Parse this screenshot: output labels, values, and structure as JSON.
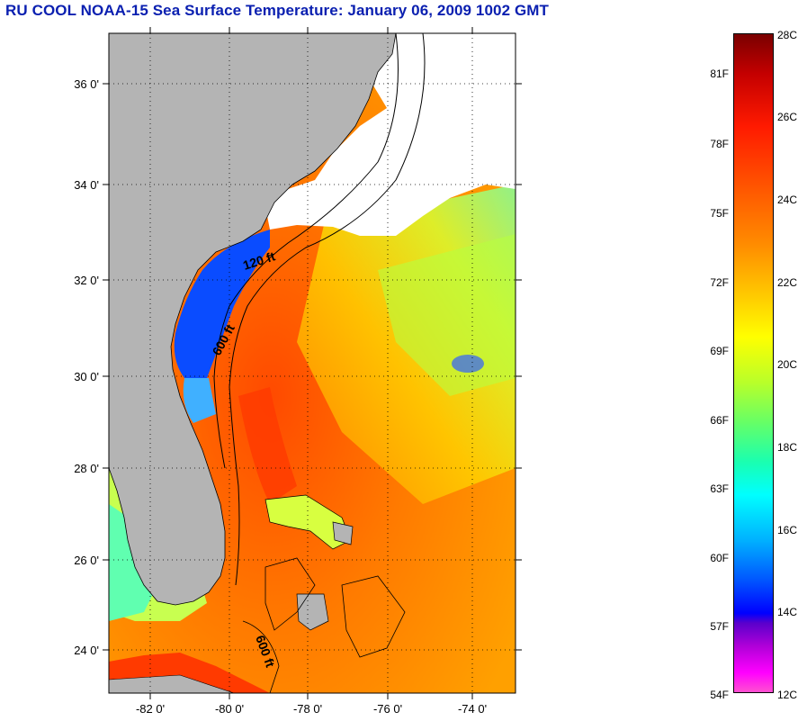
{
  "title": "RU COOL  NOAA-15  Sea Surface Temperature:  January 06, 2009 1002 GMT",
  "map": {
    "latitude_labels": [
      "36 0'",
      "34 0'",
      "32 0'",
      "30 0'",
      "28 0'",
      "26 0'",
      "24 0'"
    ],
    "longitude_labels": [
      "-82 0'",
      "-80 0'",
      "-78 0'",
      "-76 0'",
      "-74 0'"
    ],
    "contour_labels": [
      "120 ft",
      "600 ft",
      "600 ft"
    ],
    "colors": {
      "land": "#b4b4b4",
      "cloud": "#ffffff",
      "gulfstream": "#ff5a00",
      "coastal_cold": "#0a4cff"
    }
  },
  "colorbar": {
    "fahrenheit": [
      "81F",
      "78F",
      "75F",
      "72F",
      "69F",
      "66F",
      "63F",
      "60F",
      "57F",
      "54F"
    ],
    "celsius": [
      "28C",
      "26C",
      "24C",
      "22C",
      "20C",
      "18C",
      "16C",
      "14C",
      "12C"
    ]
  }
}
